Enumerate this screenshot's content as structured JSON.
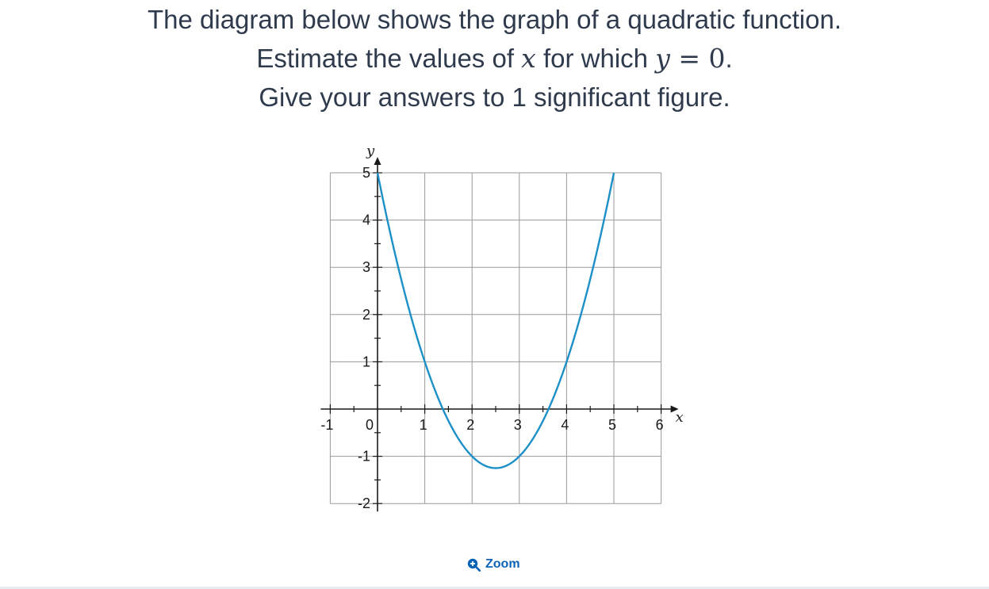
{
  "question": {
    "line1": "The diagram below shows the graph of a quadratic function.",
    "line2_pre": "Estimate the values of ",
    "line2_var_x": "x",
    "line2_mid": " for which ",
    "line2_var_y": "y",
    "line2_eq": " = ",
    "line2_zero": "0",
    "line2_post": ".",
    "line3": "Give your answers to 1 significant figure."
  },
  "zoom": {
    "label": "Zoom",
    "icon": "zoom-in-icon"
  },
  "colors": {
    "curve": "#1e90c8",
    "grid": "#9a9a9a",
    "axis": "#1a1a1a",
    "accent": "#0b63b6"
  },
  "chart_data": {
    "type": "line",
    "xlabel": "x",
    "ylabel": "y",
    "xlim": [
      -1,
      6
    ],
    "ylim": [
      -2,
      5
    ],
    "grid": true,
    "x_ticks": [
      "-1",
      "0",
      "1",
      "2",
      "3",
      "4",
      "5",
      "6"
    ],
    "y_ticks": [
      "-2",
      "-1",
      "1",
      "2",
      "3",
      "4",
      "5"
    ],
    "series": [
      {
        "function": "y = x^2 - 5x + 5",
        "x": [
          0,
          0.5,
          1,
          1.5,
          2,
          2.5,
          3,
          3.5,
          4,
          4.5,
          5
        ],
        "y": [
          5,
          2.75,
          1,
          -0.25,
          -1,
          -1.25,
          -1,
          -0.25,
          1,
          2.75,
          5
        ]
      }
    ]
  }
}
